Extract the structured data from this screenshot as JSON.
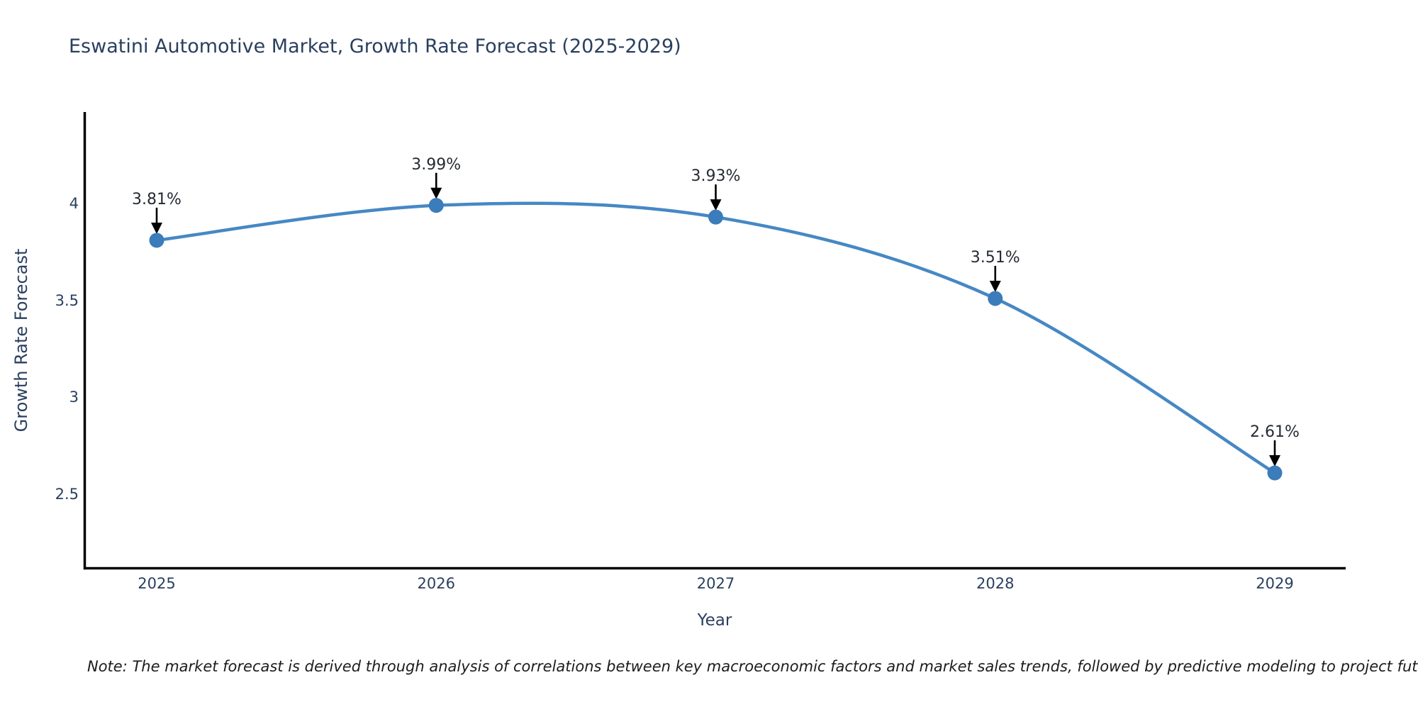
{
  "chart_data": {
    "type": "line",
    "title": "Eswatini Automotive Market, Growth Rate Forecast (2025-2029)",
    "xlabel": "Year",
    "ylabel": "Growth Rate Forecast",
    "categories": [
      "2025",
      "2026",
      "2027",
      "2028",
      "2029"
    ],
    "series": [
      {
        "name": "Growth Rate Forecast",
        "values": [
          3.81,
          3.99,
          3.93,
          3.51,
          2.61
        ]
      }
    ],
    "point_labels": [
      "3.81%",
      "3.99%",
      "3.93%",
      "3.51%",
      "2.61%"
    ],
    "yticks": [
      {
        "value": 4,
        "label": "4"
      },
      {
        "value": 3.5,
        "label": "3.5"
      },
      {
        "value": 3,
        "label": "3"
      },
      {
        "value": 2.5,
        "label": "2.5"
      }
    ],
    "ylim": [
      2.12,
      4.47
    ],
    "line_shape": "spline",
    "grid": false,
    "legend": "none",
    "annotations_style": "value label with down arrow to marker",
    "colors": {
      "line": "#4688c4",
      "marker": "#3b7cba",
      "arrow": "#000000",
      "spine": "#000000",
      "axis_text": "#2a3f5f",
      "annotation_text": "#262b33"
    },
    "note": "Note: The market forecast is derived through analysis of correlations between key macroeconomic factors and market sales trends, followed by predictive modeling to project future sales"
  }
}
